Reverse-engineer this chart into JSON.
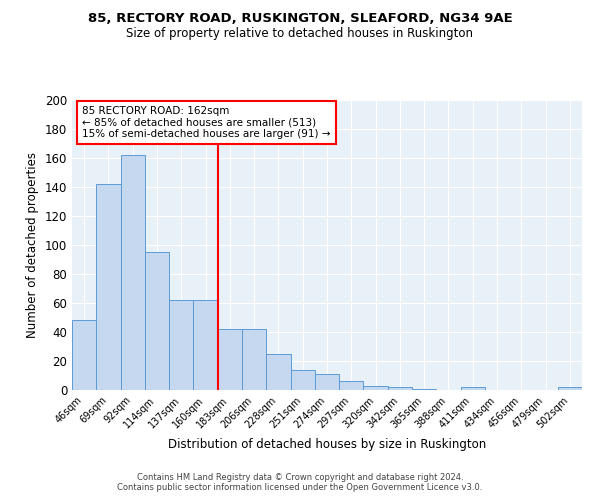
{
  "title_line1": "85, RECTORY ROAD, RUSKINGTON, SLEAFORD, NG34 9AE",
  "title_line2": "Size of property relative to detached houses in Ruskington",
  "xlabel": "Distribution of detached houses by size in Ruskington",
  "ylabel": "Number of detached properties",
  "categories": [
    "46sqm",
    "69sqm",
    "92sqm",
    "114sqm",
    "137sqm",
    "160sqm",
    "183sqm",
    "206sqm",
    "228sqm",
    "251sqm",
    "274sqm",
    "297sqm",
    "320sqm",
    "342sqm",
    "365sqm",
    "388sqm",
    "411sqm",
    "434sqm",
    "456sqm",
    "479sqm",
    "502sqm"
  ],
  "values": [
    48,
    142,
    162,
    95,
    62,
    62,
    42,
    42,
    25,
    14,
    11,
    6,
    3,
    2,
    1,
    0,
    2,
    0,
    0,
    0,
    2
  ],
  "bar_color": "#c5d8f0",
  "bar_edge_color": "#5b9bd5",
  "vline_x": 5.5,
  "vline_color": "red",
  "annotation_text": "85 RECTORY ROAD: 162sqm\n← 85% of detached houses are smaller (513)\n15% of semi-detached houses are larger (91) →",
  "annotation_box_color": "white",
  "annotation_box_edge_color": "red",
  "footer_text": "Contains HM Land Registry data © Crown copyright and database right 2024.\nContains public sector information licensed under the Open Government Licence v3.0.",
  "ylim": [
    0,
    200
  ],
  "yticks": [
    0,
    20,
    40,
    60,
    80,
    100,
    120,
    140,
    160,
    180,
    200
  ],
  "background_color": "#e8f0f8",
  "grid_color": "white",
  "title1_fontsize": 9.5,
  "title2_fontsize": 8.5,
  "footer_fontsize": 6.0
}
